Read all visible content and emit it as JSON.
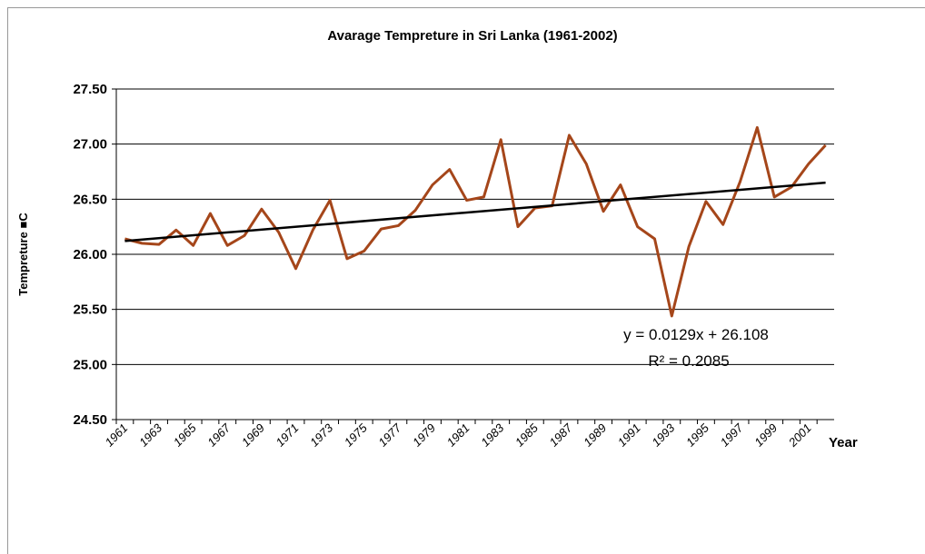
{
  "chart_data": {
    "type": "line",
    "title": "Avarage Tempreture in Sri Lanka (1961-2002)",
    "x_label": "Year",
    "y_label": "Tempreture ■C",
    "categories": [
      "1961",
      null,
      "1963",
      null,
      "1965",
      null,
      "1967",
      null,
      "1969",
      null,
      "1971",
      null,
      "1973",
      null,
      "1975",
      null,
      "1977",
      null,
      "1979",
      null,
      "1981",
      null,
      "1983",
      null,
      "1985",
      null,
      "1987",
      null,
      "1989",
      null,
      "1991",
      null,
      "1993",
      null,
      "1995",
      null,
      "1997",
      null,
      "1999",
      null,
      "2001",
      null
    ],
    "series": [
      {
        "color": "#a5461a",
        "values": [
          26.14,
          26.1,
          26.09,
          26.22,
          26.08,
          26.37,
          26.08,
          26.17,
          26.41,
          26.2,
          25.87,
          26.22,
          26.49,
          25.96,
          26.03,
          26.23,
          26.26,
          26.4,
          26.63,
          26.77,
          26.49,
          26.52,
          27.04,
          26.25,
          26.42,
          26.44,
          27.08,
          26.82,
          26.39,
          26.63,
          26.25,
          26.14,
          25.44,
          26.07,
          26.48,
          26.27,
          26.66,
          27.15,
          26.52,
          26.61,
          26.82,
          26.99
        ]
      }
    ],
    "trendline": {
      "slope": 0.0129,
      "intercept": 26.108,
      "color": "#000000",
      "equation": "y = 0.0129x + 26.108",
      "r_squared": "R² = 0.2085"
    },
    "ylim": [
      24.5,
      27.5
    ],
    "yticks": [
      {
        "value": 24.5,
        "label": "24.50"
      },
      {
        "value": 25,
        "label": "25.00"
      },
      {
        "value": 25.5,
        "label": "25.50"
      },
      {
        "value": 26,
        "label": "26.00"
      },
      {
        "value": 26.5,
        "label": "26.50"
      },
      {
        "value": 27,
        "label": "27.00"
      },
      {
        "value": 27.5,
        "label": "27.50"
      }
    ],
    "grid": true
  }
}
